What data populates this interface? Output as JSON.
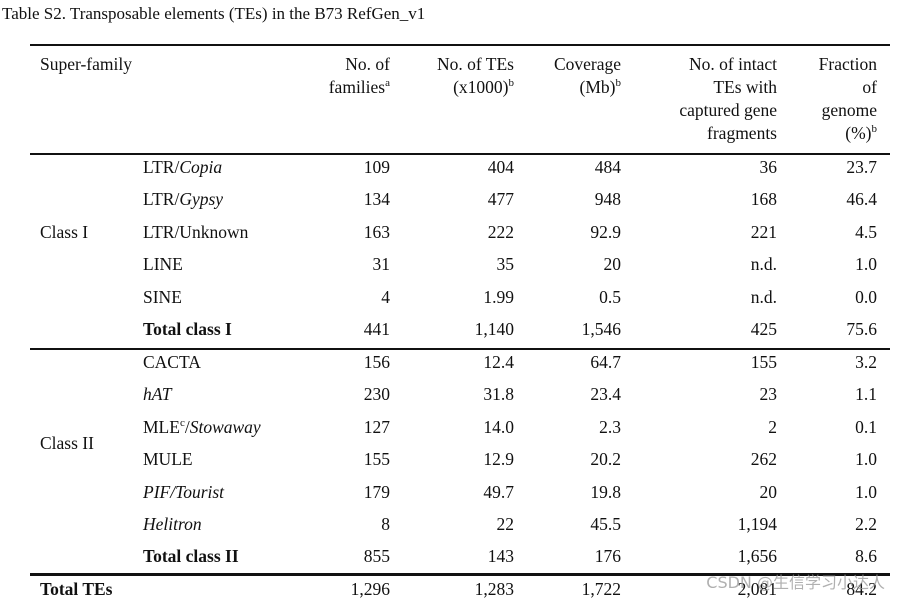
{
  "title": "Table S2. Transposable elements (TEs) in the B73 RefGen_v1",
  "table": {
    "first_header": "Super-family",
    "headers": [
      {
        "lines": [
          "No. of",
          "families"
        ],
        "sup": "a"
      },
      {
        "lines": [
          "No. of TEs",
          "(x1000)"
        ],
        "sup": "b"
      },
      {
        "lines": [
          "Coverage",
          "(Mb)"
        ],
        "sup": "b"
      },
      {
        "lines": [
          "No. of intact",
          "TEs with",
          "captured gene",
          "fragments"
        ]
      },
      {
        "lines": [
          "Fraction",
          "of",
          "genome",
          "(%)"
        ],
        "sup": "b"
      }
    ],
    "groups": [
      {
        "label": "Class I",
        "rows": [
          {
            "label": [
              {
                "text": "LTR/"
              },
              {
                "text": "Copia",
                "style": "italic"
              }
            ],
            "values": [
              "109",
              "404",
              "484",
              "36",
              "23.7"
            ]
          },
          {
            "label": [
              {
                "text": "LTR/"
              },
              {
                "text": "Gypsy",
                "style": "italic"
              }
            ],
            "values": [
              "134",
              "477",
              "948",
              "168",
              "46.4"
            ]
          },
          {
            "label": [
              {
                "text": "LTR/Unknown"
              }
            ],
            "values": [
              "163",
              "222",
              "92.9",
              "221",
              "4.5"
            ]
          },
          {
            "label": [
              {
                "text": "LINE"
              }
            ],
            "values": [
              "31",
              "35",
              "20",
              "n.d.",
              "1.0"
            ]
          },
          {
            "label": [
              {
                "text": "SINE"
              }
            ],
            "values": [
              "4",
              "1.99",
              "0.5",
              "n.d.",
              "0.0"
            ]
          },
          {
            "label": [
              {
                "text": "Total class I"
              }
            ],
            "values": [
              "441",
              "1,140",
              "1,546",
              "425",
              "75.6"
            ],
            "bold": true
          }
        ]
      },
      {
        "label": "Class II",
        "rows": [
          {
            "label": [
              {
                "text": "CACTA"
              }
            ],
            "values": [
              "156",
              "12.4",
              "64.7",
              "155",
              "3.2"
            ]
          },
          {
            "label": [
              {
                "text": "hAT",
                "style": "italic"
              }
            ],
            "values": [
              "230",
              "31.8",
              "23.4",
              "23",
              "1.1"
            ]
          },
          {
            "label": [
              {
                "text": "MLE"
              },
              {
                "text": "c",
                "style": "sup"
              },
              {
                "text": "/"
              },
              {
                "text": "Stowaway",
                "style": "italic"
              }
            ],
            "values": [
              "127",
              "14.0",
              "2.3",
              "2",
              "0.1"
            ]
          },
          {
            "label": [
              {
                "text": "MULE"
              }
            ],
            "values": [
              "155",
              "12.9",
              "20.2",
              "262",
              "1.0"
            ]
          },
          {
            "label": [
              {
                "text": "PIF/Tourist",
                "style": "italic"
              }
            ],
            "values": [
              "179",
              "49.7",
              "19.8",
              "20",
              "1.0"
            ]
          },
          {
            "label": [
              {
                "text": "Helitron",
                "style": "italic"
              }
            ],
            "values": [
              "8",
              "22",
              "45.5",
              "1,194",
              "2.2"
            ]
          },
          {
            "label": [
              {
                "text": "Total class II"
              }
            ],
            "values": [
              "855",
              "143",
              "176",
              "1,656",
              "8.6"
            ],
            "bold": true
          }
        ]
      }
    ],
    "total": {
      "label": "Total TEs",
      "values": [
        "1,296",
        "1,283",
        "1,722",
        "2,081",
        "84.2"
      ]
    }
  },
  "watermark": "CSDN @生信学习小达人"
}
